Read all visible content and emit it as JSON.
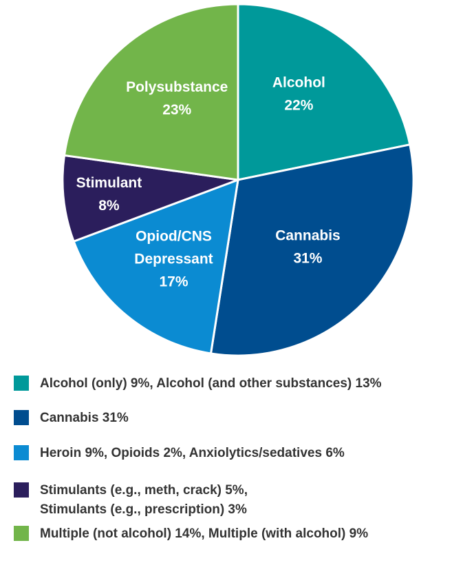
{
  "chart_data": {
    "type": "pie",
    "slices": [
      {
        "label": "Alcohol",
        "value": 22,
        "value_label": "22%",
        "color": "#00999a"
      },
      {
        "label": "Cannabis",
        "value": 31,
        "value_label": "31%",
        "color": "#004d8f"
      },
      {
        "label": "Opiod/CNS Depressant",
        "value": 17,
        "value_label": "17%",
        "color": "#0b8bd2"
      },
      {
        "label": "Stimulant",
        "value": 8,
        "value_label": "8%",
        "color": "#2b1e5c"
      },
      {
        "label": "Polysubstance",
        "value": 23,
        "value_label": "23%",
        "color": "#72b54a"
      }
    ],
    "legend": [
      {
        "lines": [
          "Alcohol (only) 9%, Alcohol (and other substances) 13%"
        ],
        "color": "#00999a"
      },
      {
        "lines": [
          "Cannabis 31%"
        ],
        "color": "#004d8f"
      },
      {
        "lines": [
          "Heroin 9%, Opioids 2%, Anxiolytics/sedatives 6%"
        ],
        "color": "#0b8bd2"
      },
      {
        "lines": [
          "Stimulants (e.g., meth, crack) 5%,",
          "Stimulants (e.g., prescription) 3%"
        ],
        "color": "#2b1e5c"
      },
      {
        "lines": [
          "Multiple (not alcohol) 14%, Multiple (with alcohol) 9%"
        ],
        "color": "#72b54a"
      }
    ],
    "legend_position": "bottom",
    "start_angle_deg": 0,
    "direction": "clockwise"
  }
}
